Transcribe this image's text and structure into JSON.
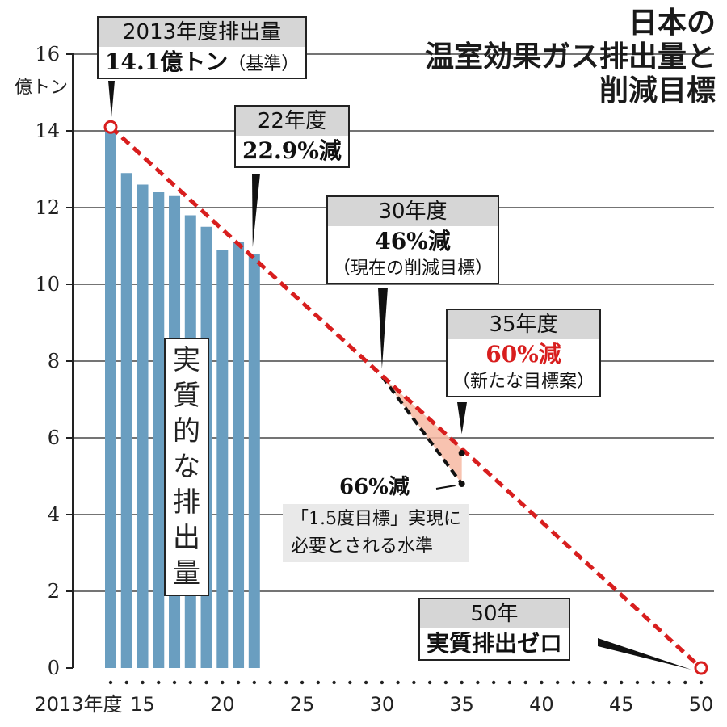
{
  "title_lines": [
    "日本の",
    "温室効果ガス排出量と",
    "削減目標"
  ],
  "chart_data": {
    "type": "bar",
    "ylabel": "億トン",
    "ylim": [
      0,
      16
    ],
    "yticks": [
      0,
      2,
      4,
      6,
      8,
      10,
      12,
      14,
      16
    ],
    "xlim": [
      2013,
      2050
    ],
    "xticks": [
      2013,
      2015,
      2020,
      2025,
      2030,
      2035,
      2040,
      2045,
      2050
    ],
    "xtick_labels": [
      "2013年度",
      "15",
      "20",
      "25",
      "30",
      "35",
      "40",
      "45",
      "50"
    ],
    "bar_series_label": "実質的な排出量",
    "categories": [
      2013,
      2014,
      2015,
      2016,
      2017,
      2018,
      2019,
      2020,
      2021,
      2022
    ],
    "values": [
      14.1,
      12.9,
      12.6,
      12.4,
      12.3,
      11.8,
      11.5,
      10.9,
      11.1,
      10.8
    ],
    "target_line": {
      "x": [
        2013,
        2050
      ],
      "y": [
        14.1,
        0
      ],
      "color": "#d81e1e"
    },
    "alt_target": {
      "x": [
        2030,
        2035
      ],
      "y": [
        7.6,
        4.8
      ]
    },
    "points": {
      "x2035_target": 5.6,
      "x2035_alt": 4.8
    },
    "colors": {
      "bar": "#6a9ec0",
      "line": "#d81e1e",
      "shade": "#f7b9a2"
    }
  },
  "callouts": {
    "c2013": {
      "header": "2013年度排出量",
      "value": "14.1億トン",
      "note": "（基準）"
    },
    "c2022": {
      "header": "22年度",
      "value": "22.9%減"
    },
    "c2030": {
      "header": "30年度",
      "value": "46%減",
      "note": "（現在の削減目標）"
    },
    "c2035": {
      "header": "35年度",
      "value": "60%減",
      "note": "（新たな目標案）"
    },
    "c2050": {
      "header": "50年",
      "value": "実質排出ゼロ"
    }
  },
  "annotation_66": {
    "value": "66%減",
    "line1": "「1.5度目標」実現に",
    "line2": "必要とされる水準"
  },
  "bar_label_vertical": "実質的な排出量"
}
